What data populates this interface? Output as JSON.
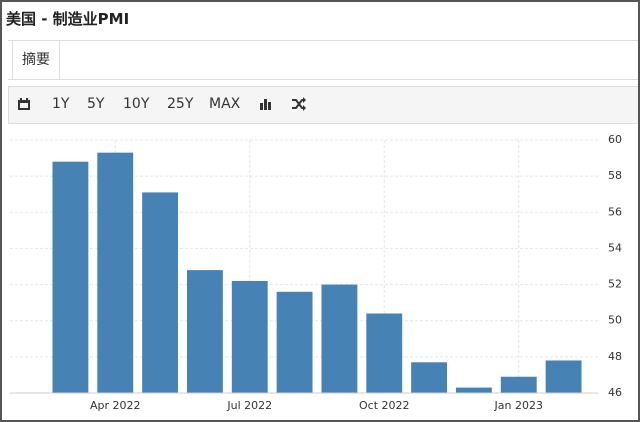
{
  "header": {
    "title": "美国 - 制造业PMI"
  },
  "tabs": [
    "摘要"
  ],
  "toolbar": [
    "1Y",
    "5Y",
    "10Y",
    "25Y",
    "MAX"
  ],
  "chart_data": {
    "type": "bar",
    "categories": [
      null,
      "Apr 2022",
      null,
      null,
      "Jul 2022",
      null,
      null,
      "Oct 2022",
      null,
      null,
      "Jan 2023",
      null
    ],
    "values": [
      58.8,
      59.3,
      57.1,
      52.8,
      52.2,
      51.6,
      52.0,
      50.4,
      47.7,
      46.3,
      46.9,
      47.8
    ],
    "color": "#4682b4",
    "ylim": [
      46,
      60
    ],
    "yticks": [
      46,
      48,
      50,
      52,
      54,
      56,
      58,
      60
    ],
    "grid": true
  }
}
